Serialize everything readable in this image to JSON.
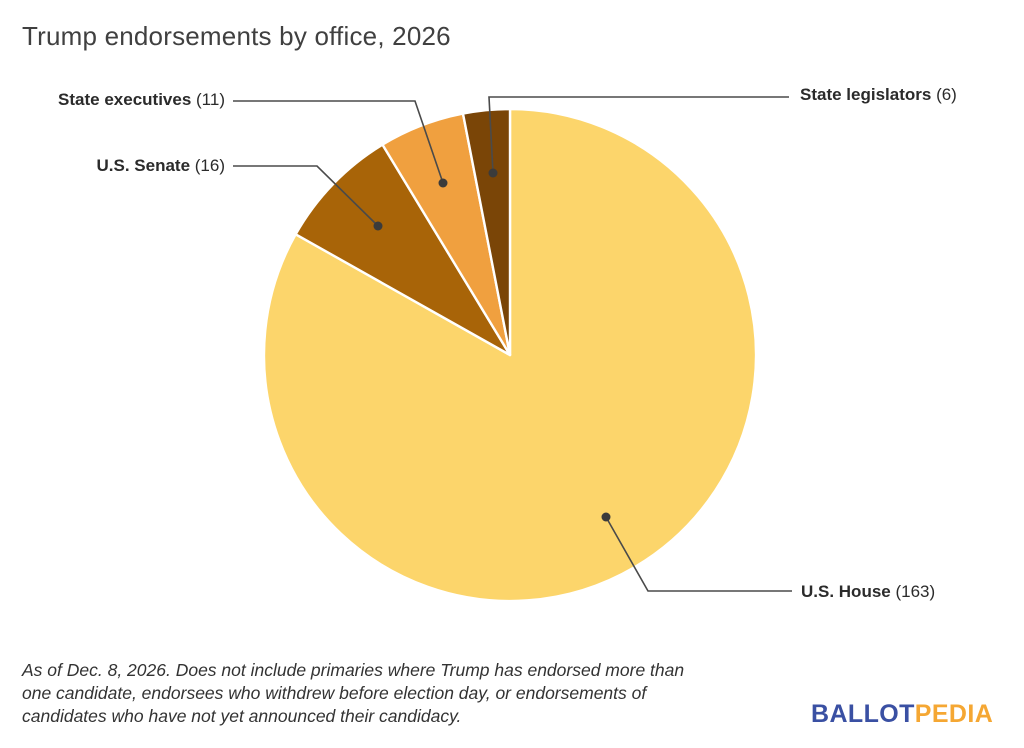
{
  "chart_data": {
    "type": "pie",
    "title": "Trump endorsements by office, 2026",
    "total": 196,
    "start_angle_deg": 0,
    "direction": "clockwise",
    "slice_border_color": "#FFFFFF",
    "leader_line_color": "#4A4A4A",
    "callout_dot_color": "#3B3B3B",
    "label_text_color": "#2B2B2B",
    "title_color": "#404040",
    "legend_position": "callout-labels",
    "slices": [
      {
        "label": "U.S. House",
        "value": 163,
        "count_label": "(163)",
        "color": "#FCD56B"
      },
      {
        "label": "U.S. Senate",
        "value": 16,
        "count_label": "(16)",
        "color": "#A86408"
      },
      {
        "label": "State executives",
        "value": 11,
        "count_label": "(11)",
        "color": "#F0A03F"
      },
      {
        "label": "State legislators",
        "value": 6,
        "count_label": "(6)",
        "color": "#7A4507"
      }
    ]
  },
  "footnote": {
    "lines": [
      "As of Dec. 8, 2026. Does not include primaries where Trump has endorsed more than",
      "one candidate, endorsees who withdrew before election day, or endorsements of",
      "candidates who have not yet announced their candidacy."
    ]
  },
  "logo": {
    "part1": "BALLOT",
    "part2": "PEDIA",
    "part1_color": "#3A50A3",
    "part2_color": "#F5A733"
  }
}
